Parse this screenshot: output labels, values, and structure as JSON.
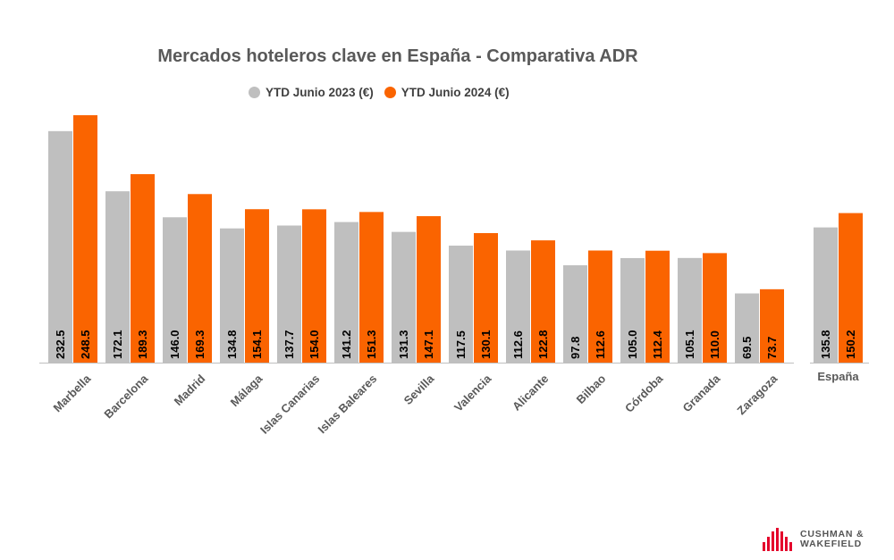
{
  "title": "Mercados hoteleros clave en España - Comparativa ADR",
  "legend": [
    {
      "label": "YTD Junio 2023 (€)",
      "color": "#bfbfbf"
    },
    {
      "label": "YTD Junio 2024 (€)",
      "color": "#fa6400"
    }
  ],
  "chart_data": [
    {
      "type": "bar",
      "categories": [
        "Marbella",
        "Barcelona",
        "Madrid",
        "Málaga",
        "Islas Canarias",
        "Islas Baleares",
        "Sevilla",
        "Valencia",
        "Alicante",
        "Bilbao",
        "Córdoba",
        "Granada",
        "Zaragoza"
      ],
      "series": [
        {
          "name": "YTD Junio 2023 (€)",
          "values": [
            232.5,
            172.1,
            146.0,
            134.8,
            137.7,
            141.2,
            131.3,
            117.5,
            112.6,
            97.8,
            105.0,
            105.1,
            69.5
          ]
        },
        {
          "name": "YTD Junio 2024 (€)",
          "values": [
            248.5,
            189.3,
            169.3,
            154.1,
            154.0,
            151.3,
            147.1,
            130.1,
            122.8,
            112.6,
            112.4,
            110.0,
            73.7
          ]
        }
      ],
      "ylim": [
        0,
        250
      ],
      "grid": false
    },
    {
      "type": "bar",
      "categories": [
        "España"
      ],
      "series": [
        {
          "name": "YTD Junio 2023 (€)",
          "values": [
            135.8
          ]
        },
        {
          "name": "YTD Junio 2024 (€)",
          "values": [
            150.2
          ]
        }
      ],
      "ylim": [
        0,
        250
      ],
      "grid": false
    }
  ],
  "brand": {
    "line1": "CUSHMAN &",
    "line2": "WAKEFIELD",
    "color": "#e4002b"
  }
}
